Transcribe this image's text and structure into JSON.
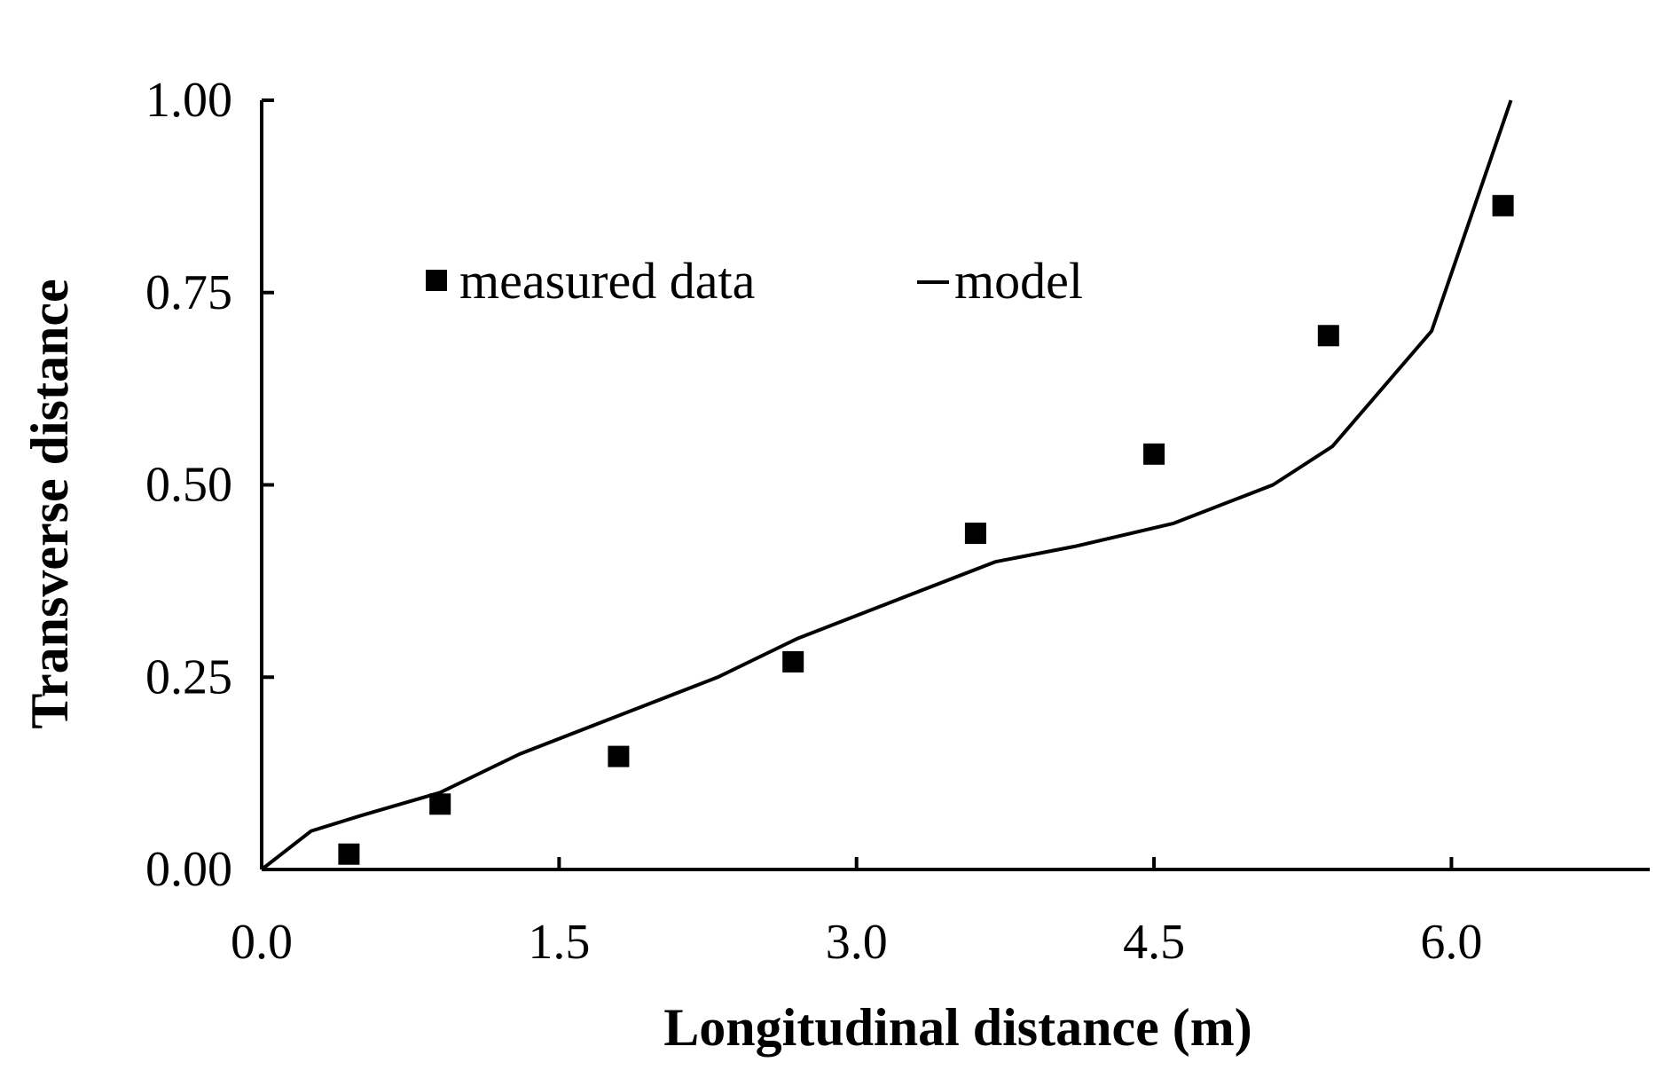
{
  "chart_data": {
    "type": "scatter",
    "title": "",
    "xlabel": "Longitudinal distance (m)",
    "ylabel": "Transverse distance",
    "xlim": [
      0,
      7.0
    ],
    "ylim": [
      0,
      1.0
    ],
    "x_ticks": [
      0.0,
      1.5,
      3.0,
      4.5,
      6.0
    ],
    "x_tick_labels": [
      "0.0",
      "1.5",
      "3.0",
      "4.5",
      "6.0"
    ],
    "y_ticks": [
      0.0,
      0.25,
      0.5,
      0.75,
      1.0
    ],
    "y_tick_labels": [
      "0.00",
      "0.25",
      "0.50",
      "0.75",
      "1.00"
    ],
    "grid": false,
    "legend_position": "upper-left",
    "colors": {
      "measured": "#000000",
      "model": "#000000",
      "axis": "#000000"
    },
    "series": [
      {
        "name": "measured data",
        "kind": "scatter",
        "marker": "square",
        "x": [
          0.44,
          0.9,
          1.8,
          2.68,
          3.6,
          4.5,
          5.38,
          6.26
        ],
        "y": [
          0.02,
          0.085,
          0.147,
          0.27,
          0.437,
          0.54,
          0.694,
          0.863
        ]
      },
      {
        "name": "model",
        "kind": "line",
        "x": [
          0.0,
          0.25,
          0.5,
          0.9,
          1.3,
          1.8,
          2.3,
          2.7,
          3.2,
          3.7,
          4.1,
          4.6,
          5.1,
          5.4,
          5.9,
          6.3
        ],
        "y": [
          0.0,
          0.05,
          0.07,
          0.1,
          0.15,
          0.2,
          0.25,
          0.3,
          0.35,
          0.4,
          0.42,
          0.45,
          0.5,
          0.55,
          0.7,
          1.0
        ]
      }
    ],
    "legend": {
      "measured_label": "measured data",
      "model_label": "model",
      "model_glyph": "—"
    }
  }
}
